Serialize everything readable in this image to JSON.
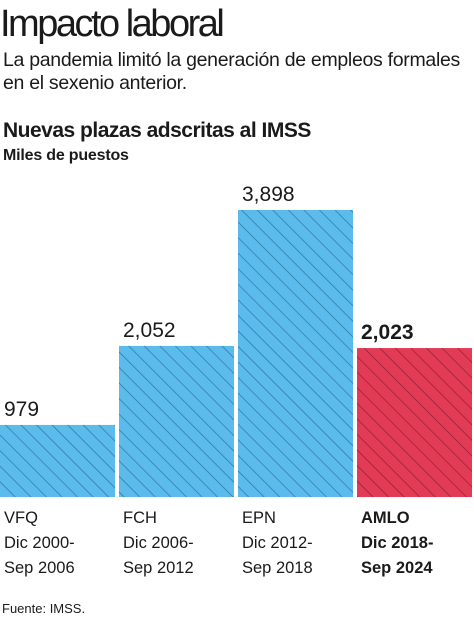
{
  "header": {
    "title": "Impacto laboral",
    "subtitle": "La pandemia limitó la generación de empleos formales en el sexenio anterior."
  },
  "source": "Fuente: IMSS.",
  "colors": {
    "bar": "#5bbbea",
    "bar_highlight": "#e23b55",
    "hatch": "#2d6f9c",
    "hatch_highlight": "#8e1b32"
  },
  "chart_data": {
    "type": "bar",
    "title": "Nuevas plazas adscritas al IMSS",
    "ylabel": "Miles de puestos",
    "ylim": [
      0,
      4000
    ],
    "grid": false,
    "legend": "none",
    "categories": [
      {
        "lines": [
          "VFQ",
          "Dic 2000-",
          "Sep 2006"
        ],
        "value_label": "979",
        "highlight": false
      },
      {
        "lines": [
          "FCH",
          "Dic 2006-",
          "Sep 2012"
        ],
        "value_label": "2,052",
        "highlight": false
      },
      {
        "lines": [
          "EPN",
          "Dic 2012-",
          "Sep 2018"
        ],
        "value_label": "3,898",
        "highlight": false
      },
      {
        "lines": [
          "AMLO",
          "Dic 2018-",
          "Sep 2024"
        ],
        "value_label": "2,023",
        "highlight": true
      }
    ],
    "values": [
      979,
      2052,
      3898,
      2023
    ]
  }
}
